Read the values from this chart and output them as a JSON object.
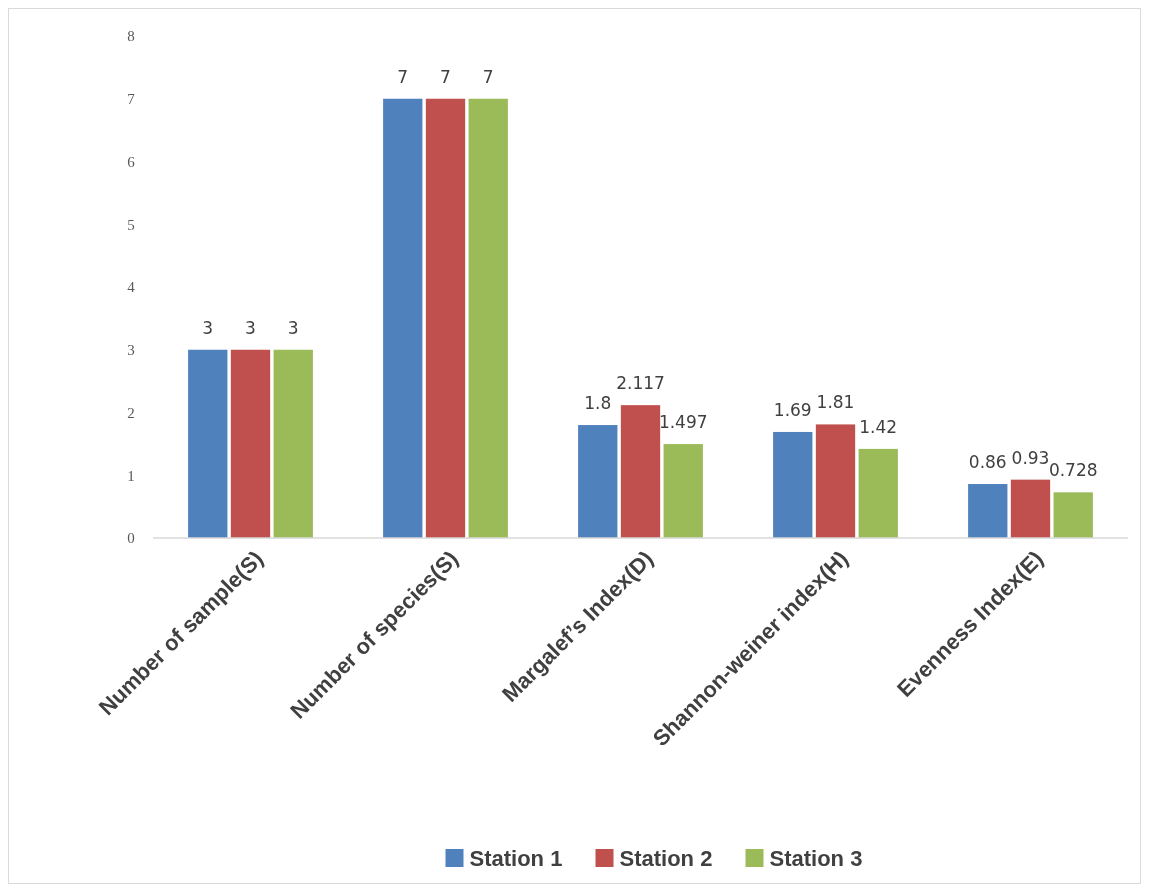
{
  "chart_data": {
    "type": "bar",
    "categories": [
      "Number of sample(S)",
      "Number of species(S)",
      "Margalef’s Index(D)",
      "Shannon-weiner index(H)",
      "Evenness Index(E)"
    ],
    "series": [
      {
        "name": "Station 1",
        "color": "#4f81bd",
        "values": [
          3,
          7,
          1.8,
          1.69,
          0.86
        ]
      },
      {
        "name": "Station 2",
        "color": "#c0504d",
        "values": [
          3,
          7,
          2.117,
          1.81,
          0.93
        ]
      },
      {
        "name": "Station 3",
        "color": "#9bbb59",
        "values": [
          3,
          7,
          1.497,
          1.42,
          0.728
        ]
      }
    ],
    "ylim": [
      0,
      8
    ],
    "yticks": [
      0,
      1,
      2,
      3,
      4,
      5,
      6,
      7,
      8
    ],
    "data_labels": true,
    "grid": false,
    "legend": "bottom"
  }
}
